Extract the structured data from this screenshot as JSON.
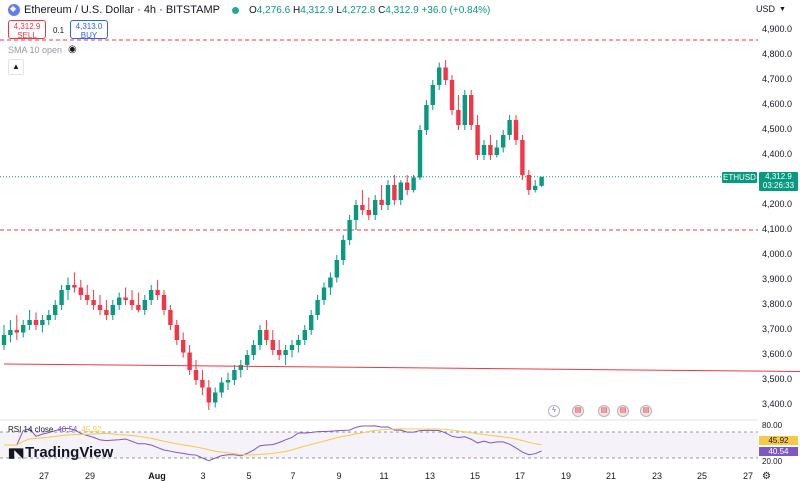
{
  "header": {
    "symbol_title": "Ethereum / U.S. Dollar · 4h · BITSTAMP",
    "o_label": "O",
    "o_value": "4,276.6",
    "h_label": "H",
    "h_value": "4,312.9",
    "l_label": "L",
    "l_value": "4,272.8",
    "c_label": "C",
    "c_value": "4,312.9",
    "change": "+36.0 (+0.84%)"
  },
  "trade": {
    "sell_price": "4,312.9",
    "sell_label": "SELL",
    "spread": "0.1",
    "buy_price": "4,313.0",
    "buy_label": "BUY"
  },
  "indicator": {
    "sma_label": "SMA 10 open",
    "collapse_icon": "chevron-up-icon"
  },
  "currency": "USD",
  "price_axis": [
    "4,900.0",
    "4,800.0",
    "4,700.0",
    "4,600.0",
    "4,500.0",
    "4,400.0",
    "4,300.0",
    "4,200.0",
    "4,100.0",
    "4,000.0",
    "3,900.0",
    "3,800.0",
    "3,700.0",
    "3,600.0",
    "3,500.0",
    "3,400.0"
  ],
  "last_price_tag": {
    "symbol": "ETHUSD",
    "price": "4,312.9",
    "countdown": "03:26:33"
  },
  "time_axis": [
    {
      "label": "27",
      "bold": false
    },
    {
      "label": "29",
      "bold": false
    },
    {
      "label": "Aug",
      "bold": true
    },
    {
      "label": "3",
      "bold": false
    },
    {
      "label": "5",
      "bold": false
    },
    {
      "label": "7",
      "bold": false
    },
    {
      "label": "9",
      "bold": false
    },
    {
      "label": "11",
      "bold": false
    },
    {
      "label": "13",
      "bold": false
    },
    {
      "label": "15",
      "bold": false
    },
    {
      "label": "17",
      "bold": false
    },
    {
      "label": "19",
      "bold": false
    },
    {
      "label": "21",
      "bold": false
    },
    {
      "label": "23",
      "bold": false
    },
    {
      "label": "25",
      "bold": false
    },
    {
      "label": "27",
      "bold": false
    }
  ],
  "rsi": {
    "label": "RSI 14 close",
    "value1": "40.54",
    "value2": "45.92",
    "axis_labels": [
      "80.00",
      "20.00"
    ],
    "tag_ma": "45.92",
    "tag_rsi": "40.54"
  },
  "brand": "TradingView",
  "colors": {
    "up": "#089981",
    "down": "#f23645",
    "rsi": "#7e57c2",
    "rsi_ma": "#f7c948",
    "channel": "#f23645"
  },
  "chart_data": {
    "type": "candlestick",
    "title": "Ethereum / U.S. Dollar · 4h · BITSTAMP",
    "ylim": [
      3340,
      4940
    ],
    "horizontal_levels": [
      4860,
      4100
    ],
    "trend_line": {
      "from": [
        0,
        3564
      ],
      "to": [
        220,
        3511
      ]
    },
    "channel": {
      "upper": {
        "from": [
          131,
          4802
        ],
        "to": [
          170,
          4456
        ]
      },
      "lower": {
        "from": [
          128,
          4622
        ],
        "to": [
          168,
          4210
        ]
      }
    },
    "candles": [
      [
        3640,
        3720,
        3620,
        3680
      ],
      [
        3680,
        3740,
        3650,
        3700
      ],
      [
        3700,
        3760,
        3660,
        3690
      ],
      [
        3690,
        3740,
        3670,
        3720
      ],
      [
        3720,
        3780,
        3700,
        3740
      ],
      [
        3740,
        3770,
        3700,
        3720
      ],
      [
        3720,
        3760,
        3690,
        3740
      ],
      [
        3740,
        3780,
        3720,
        3760
      ],
      [
        3760,
        3820,
        3740,
        3800
      ],
      [
        3800,
        3880,
        3780,
        3860
      ],
      [
        3860,
        3910,
        3820,
        3880
      ],
      [
        3880,
        3930,
        3850,
        3870
      ],
      [
        3870,
        3900,
        3820,
        3840
      ],
      [
        3840,
        3880,
        3800,
        3820
      ],
      [
        3820,
        3860,
        3780,
        3800
      ],
      [
        3800,
        3840,
        3760,
        3780
      ],
      [
        3780,
        3820,
        3740,
        3760
      ],
      [
        3760,
        3820,
        3740,
        3800
      ],
      [
        3800,
        3850,
        3780,
        3830
      ],
      [
        3830,
        3870,
        3800,
        3820
      ],
      [
        3820,
        3860,
        3780,
        3800
      ],
      [
        3800,
        3850,
        3770,
        3780
      ],
      [
        3780,
        3840,
        3760,
        3820
      ],
      [
        3820,
        3880,
        3800,
        3860
      ],
      [
        3860,
        3900,
        3820,
        3840
      ],
      [
        3840,
        3860,
        3760,
        3780
      ],
      [
        3780,
        3800,
        3700,
        3720
      ],
      [
        3720,
        3740,
        3640,
        3660
      ],
      [
        3660,
        3690,
        3590,
        3610
      ],
      [
        3610,
        3640,
        3520,
        3540
      ],
      [
        3540,
        3580,
        3480,
        3500
      ],
      [
        3500,
        3540,
        3440,
        3470
      ],
      [
        3470,
        3500,
        3380,
        3410
      ],
      [
        3410,
        3470,
        3390,
        3450
      ],
      [
        3450,
        3510,
        3430,
        3490
      ],
      [
        3490,
        3530,
        3460,
        3500
      ],
      [
        3500,
        3560,
        3480,
        3540
      ],
      [
        3540,
        3580,
        3510,
        3560
      ],
      [
        3560,
        3620,
        3540,
        3600
      ],
      [
        3600,
        3660,
        3580,
        3640
      ],
      [
        3640,
        3720,
        3620,
        3700
      ],
      [
        3700,
        3740,
        3640,
        3660
      ],
      [
        3660,
        3700,
        3600,
        3620
      ],
      [
        3620,
        3660,
        3580,
        3600
      ],
      [
        3600,
        3640,
        3560,
        3620
      ],
      [
        3620,
        3660,
        3590,
        3640
      ],
      [
        3640,
        3680,
        3610,
        3660
      ],
      [
        3660,
        3720,
        3640,
        3700
      ],
      [
        3700,
        3780,
        3680,
        3760
      ],
      [
        3760,
        3840,
        3740,
        3820
      ],
      [
        3820,
        3890,
        3800,
        3870
      ],
      [
        3870,
        3930,
        3840,
        3910
      ],
      [
        3910,
        4000,
        3890,
        3980
      ],
      [
        3980,
        4080,
        3960,
        4060
      ],
      [
        4060,
        4160,
        4040,
        4140
      ],
      [
        4140,
        4220,
        4100,
        4200
      ],
      [
        4200,
        4260,
        4160,
        4180
      ],
      [
        4180,
        4230,
        4140,
        4160
      ],
      [
        4160,
        4240,
        4140,
        4220
      ],
      [
        4220,
        4280,
        4180,
        4200
      ],
      [
        4200,
        4300,
        4180,
        4280
      ],
      [
        4280,
        4320,
        4200,
        4220
      ],
      [
        4220,
        4300,
        4200,
        4290
      ],
      [
        4290,
        4320,
        4240,
        4260
      ],
      [
        4260,
        4320,
        4250,
        4310
      ],
      [
        4310,
        4520,
        4300,
        4500
      ],
      [
        4500,
        4620,
        4480,
        4600
      ],
      [
        4600,
        4700,
        4580,
        4680
      ],
      [
        4680,
        4770,
        4660,
        4750
      ],
      [
        4750,
        4780,
        4680,
        4700
      ],
      [
        4700,
        4720,
        4560,
        4580
      ],
      [
        4580,
        4640,
        4500,
        4520
      ],
      [
        4520,
        4660,
        4500,
        4640
      ],
      [
        4640,
        4660,
        4500,
        4520
      ],
      [
        4520,
        4560,
        4380,
        4400
      ],
      [
        4400,
        4460,
        4380,
        4440
      ],
      [
        4440,
        4480,
        4380,
        4400
      ],
      [
        4400,
        4460,
        4390,
        4430
      ],
      [
        4430,
        4500,
        4410,
        4480
      ],
      [
        4480,
        4560,
        4460,
        4540
      ],
      [
        4540,
        4560,
        4440,
        4460
      ],
      [
        4460,
        4480,
        4300,
        4320
      ],
      [
        4320,
        4340,
        4240,
        4260
      ],
      [
        4260,
        4300,
        4250,
        4276.6
      ],
      [
        4276.6,
        4312.9,
        4272.8,
        4312.9
      ]
    ]
  }
}
